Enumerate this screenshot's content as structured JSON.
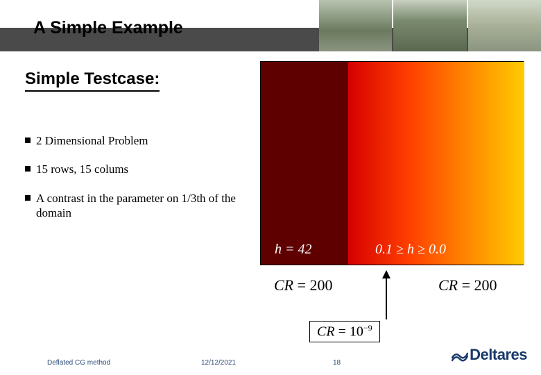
{
  "title": "A Simple Example",
  "subtitle": "Simple Testcase:",
  "bullets": [
    "2 Dimensional Problem",
    "15 rows, 15 colums",
    "A contrast in the parameter on 1/3th of the domain"
  ],
  "gradient": {
    "left_color": "#5e0000",
    "right_gradient": [
      "#d60000",
      "#ff4000",
      "#ff8c00",
      "#ffcc00"
    ],
    "label_left_html": "<span class='it'>h</span> = 42",
    "label_right_html": "0.1 ≥ <span class='it'>h</span> ≥ 0.0",
    "label_color": "#ffffff"
  },
  "annotations": {
    "cr_left_html": "<span class='it'>CR</span> = 200",
    "cr_right_html": "<span class='it'>CR</span> = 200",
    "cr_bottom_html": "<span class='it'>CR</span> = 10<sup>−9</sup>"
  },
  "footer": {
    "left": "Deflated CG method",
    "date": "12/12/2021",
    "page": "18",
    "logo_text": "Deltares",
    "logo_color": "#1a3a6a"
  }
}
